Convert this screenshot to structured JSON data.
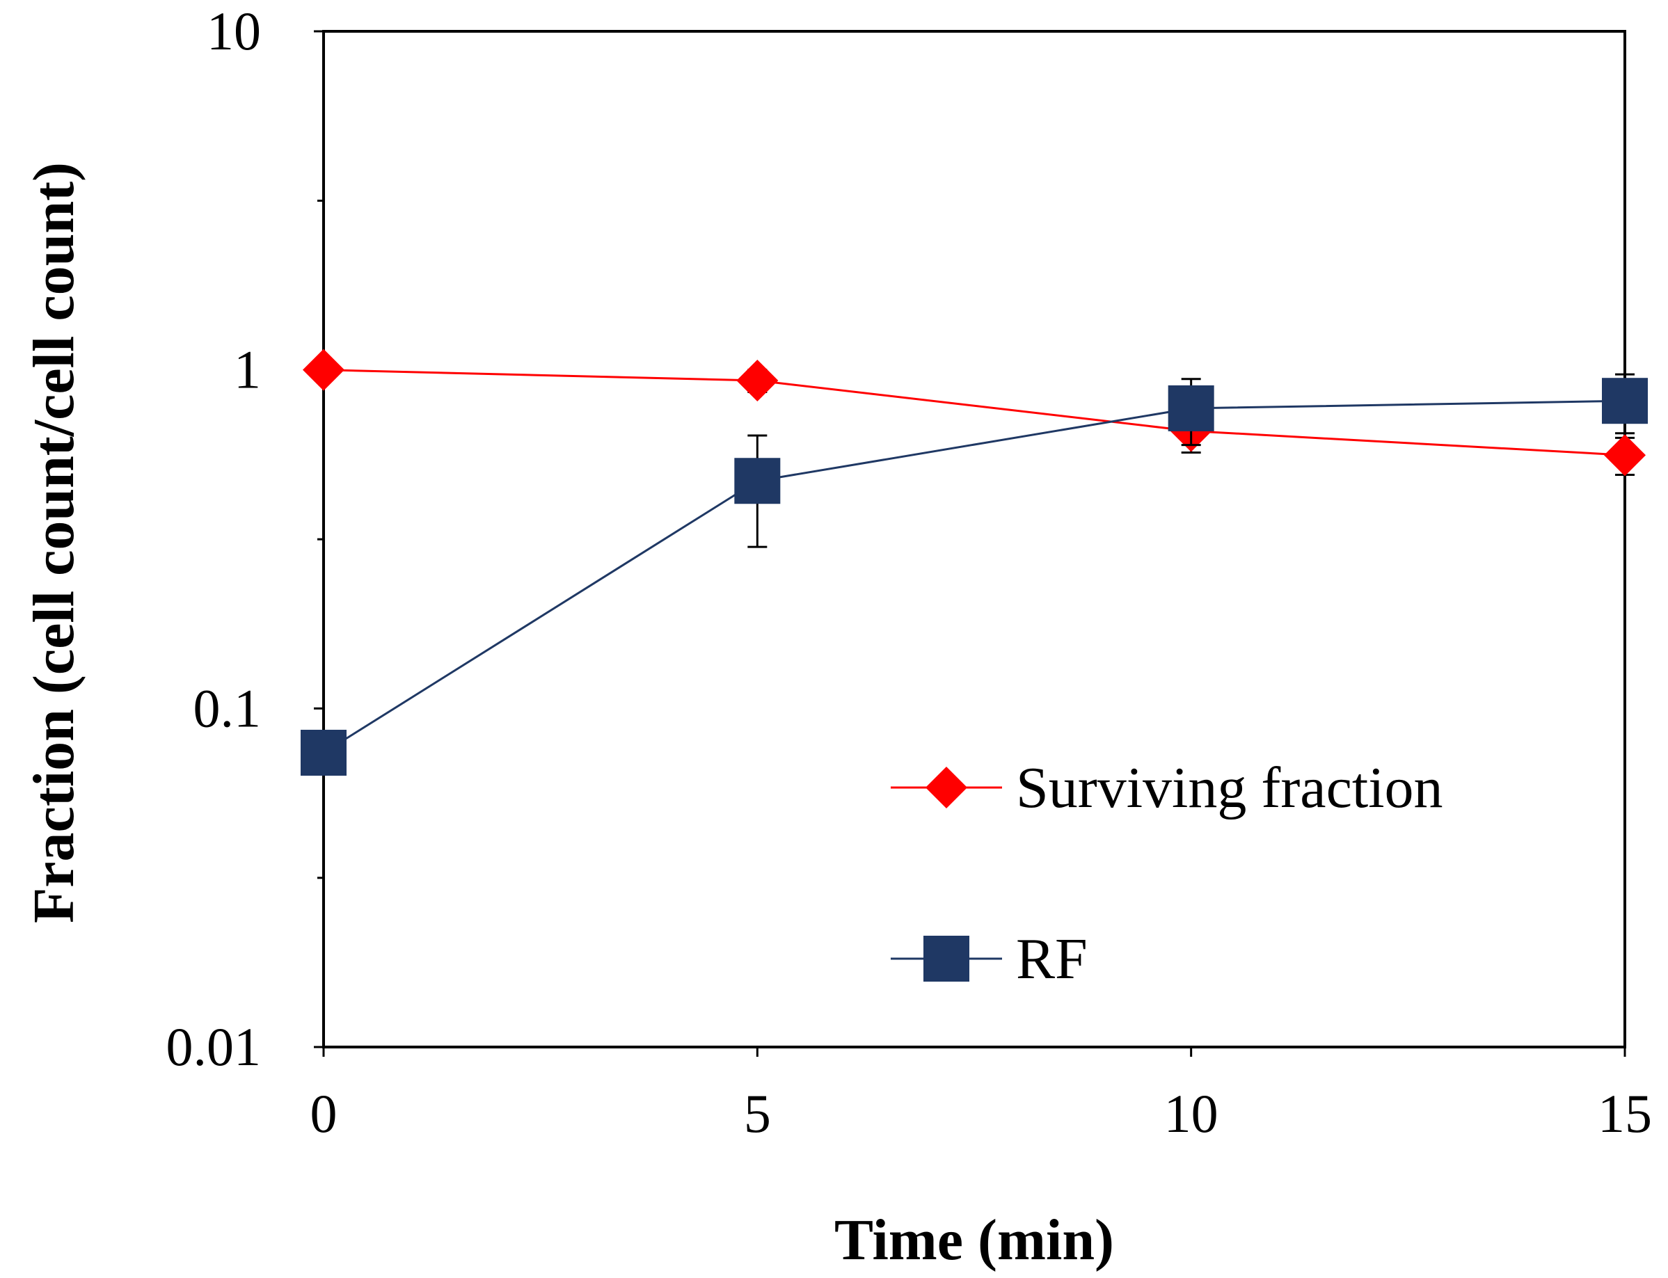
{
  "chart_data": {
    "type": "line",
    "title": "",
    "xlabel": "Time (min)",
    "ylabel": "Fraction (cell count/cell count)",
    "x": [
      0,
      5,
      10,
      15
    ],
    "xlim": [
      0,
      15
    ],
    "ylim": [
      0.01,
      10
    ],
    "yscale": "log",
    "xticks": [
      0,
      5,
      10,
      15
    ],
    "xtick_labels": [
      "0",
      "5",
      "10",
      "15"
    ],
    "yticks": [
      0.01,
      0.1,
      1,
      10
    ],
    "ytick_labels": [
      "0.01",
      "0.1",
      "1",
      "10"
    ],
    "grid": false,
    "legend_position": "lower-right",
    "series": [
      {
        "name": "Surviving fraction",
        "marker": "diamond",
        "color": "#ff0000",
        "values": [
          1.0,
          0.93,
          0.66,
          0.56
        ],
        "error": [
          0.05,
          0.07,
          0.09,
          0.07
        ]
      },
      {
        "name": "RF",
        "marker": "square",
        "color": "#1f3864",
        "values": [
          0.074,
          0.47,
          0.77,
          0.81
        ],
        "error": [
          0.003,
          0.17,
          0.17,
          0.16
        ]
      }
    ]
  }
}
